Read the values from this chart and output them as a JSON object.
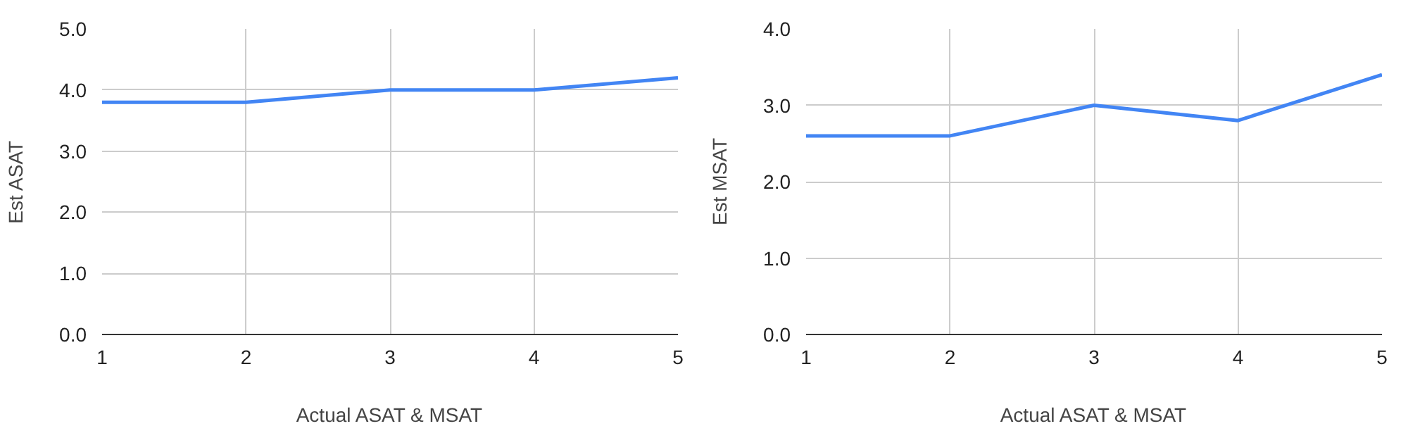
{
  "chart_data": [
    {
      "type": "line",
      "xlabel": "Actual ASAT & MSAT",
      "ylabel": "Est ASAT",
      "x": [
        1,
        2,
        3,
        4,
        5
      ],
      "series": [
        {
          "color": "#4285f4",
          "values": [
            3.8,
            3.8,
            4.0,
            4.0,
            4.2
          ]
        }
      ],
      "xlim": [
        1,
        5
      ],
      "xticks": [
        1,
        2,
        3,
        4,
        5
      ],
      "ylim": [
        0,
        5
      ],
      "yticks": [
        {
          "value": 0,
          "label": "0.0"
        },
        {
          "value": 1,
          "label": "1.0"
        },
        {
          "value": 2,
          "label": "2.0"
        },
        {
          "value": 3,
          "label": "3.0"
        },
        {
          "value": 4,
          "label": "4.0"
        },
        {
          "value": 5,
          "label": "5.0"
        }
      ],
      "grid": true,
      "marker": "none",
      "line_style": "solid"
    },
    {
      "type": "line",
      "xlabel": "Actual ASAT & MSAT",
      "ylabel": "Est MSAT",
      "x": [
        1,
        2,
        3,
        4,
        5
      ],
      "series": [
        {
          "color": "#4285f4",
          "values": [
            2.6,
            2.6,
            3.0,
            2.8,
            3.4
          ]
        }
      ],
      "xlim": [
        1,
        5
      ],
      "xticks": [
        1,
        2,
        3,
        4,
        5
      ],
      "ylim": [
        0,
        4
      ],
      "yticks": [
        {
          "value": 0,
          "label": "0.0"
        },
        {
          "value": 1,
          "label": "1.0"
        },
        {
          "value": 2,
          "label": "2.0"
        },
        {
          "value": 3,
          "label": "3.0"
        },
        {
          "value": 4,
          "label": "4.0"
        }
      ],
      "grid": true,
      "marker": "none",
      "line_style": "solid"
    }
  ]
}
